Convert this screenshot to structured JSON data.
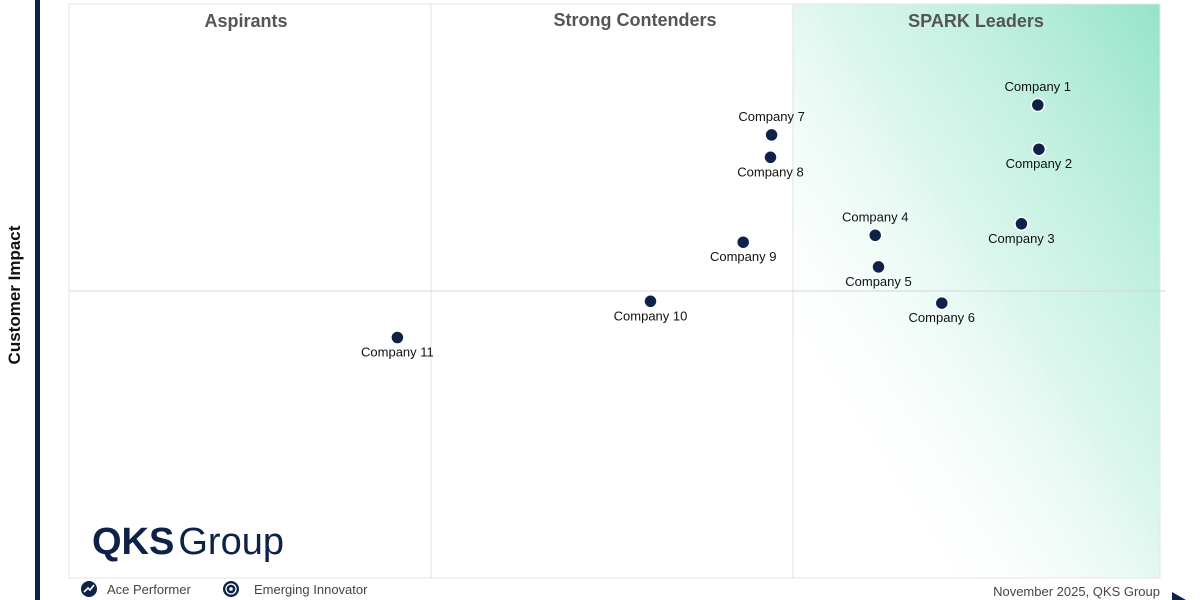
{
  "chart_data": {
    "type": "scatter",
    "ylabel": "Customer Impact",
    "quadrants": [
      "Aspirants",
      "Strong Contenders",
      "SPARK Leaders"
    ],
    "points": [
      {
        "label": "Company 1",
        "x": 0.888,
        "y": 0.824,
        "label_pos": "above"
      },
      {
        "label": "Company 2",
        "x": 0.889,
        "y": 0.747,
        "label_pos": "below"
      },
      {
        "label": "Company 3",
        "x": 0.873,
        "y": 0.617,
        "label_pos": "below"
      },
      {
        "label": "Company 4",
        "x": 0.739,
        "y": 0.597,
        "label_pos": "above"
      },
      {
        "label": "Company 5",
        "x": 0.742,
        "y": 0.542,
        "label_pos": "below"
      },
      {
        "label": "Company 6",
        "x": 0.8,
        "y": 0.479,
        "label_pos": "below"
      },
      {
        "label": "Company 7",
        "x": 0.644,
        "y": 0.772,
        "label_pos": "above"
      },
      {
        "label": "Company 8",
        "x": 0.643,
        "y": 0.733,
        "label_pos": "below"
      },
      {
        "label": "Company 9",
        "x": 0.618,
        "y": 0.585,
        "label_pos": "below"
      },
      {
        "label": "Company 10",
        "x": 0.533,
        "y": 0.482,
        "label_pos": "below"
      },
      {
        "label": "Company 11",
        "x": 0.301,
        "y": 0.419,
        "label_pos": "below"
      }
    ],
    "grid": true,
    "colors": {
      "point": "#0e2148",
      "leader_gradient": "#8fe2c6",
      "axis": "#0e2148"
    }
  },
  "brand": {
    "logo_strong": "QKS",
    "logo_light": "Group"
  },
  "legend": [
    {
      "label": "Ace Performer",
      "icon": "ace-performer-icon"
    },
    {
      "label": "Emerging Innovator",
      "icon": "emerging-innovator-icon"
    }
  ],
  "footer": {
    "date": "November 2025, QKS Group"
  }
}
